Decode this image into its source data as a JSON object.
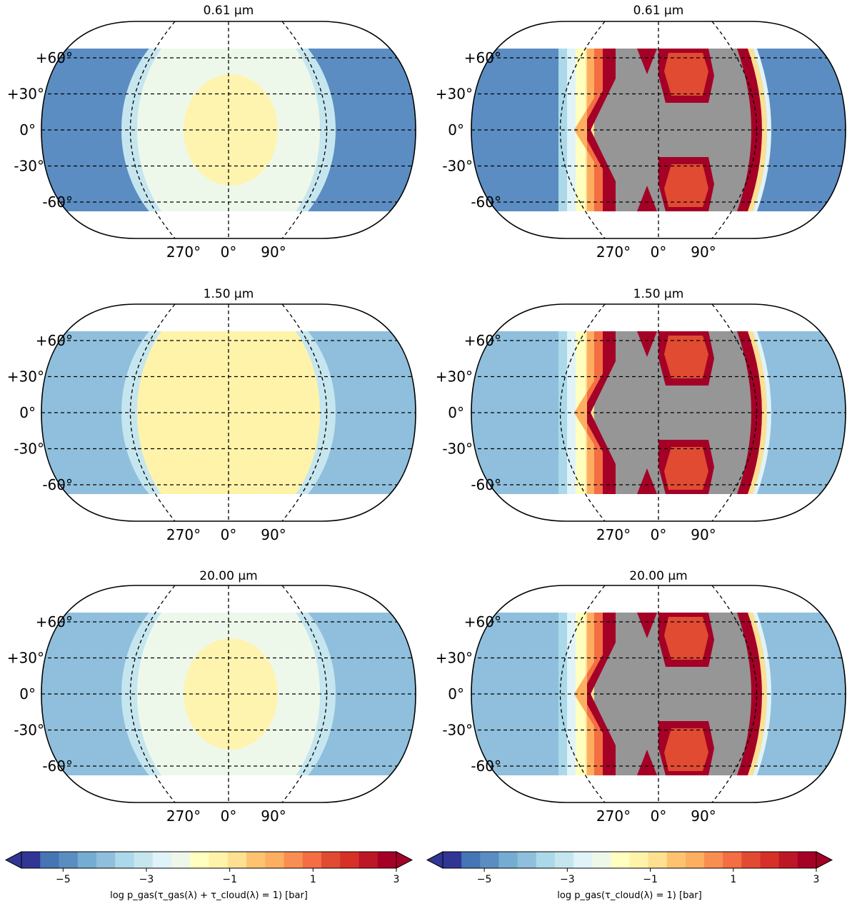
{
  "chart_data": {
    "type": "heatmap",
    "projection": "Robinson (elliptical outline, latitude band -60° to +60°)",
    "panels": [
      {
        "row": 0,
        "column": "left",
        "title": "0.61 μm",
        "field": "gas_plus_cloud",
        "nightside_value": -5.0,
        "limb_value": -3.0,
        "dayside_value": -2.0,
        "substellar_value": -1.5
      },
      {
        "row": 0,
        "column": "right",
        "title": "0.61 μm",
        "field": "cloud_only",
        "nightside_value": -5.0,
        "limb_value": -2.0,
        "terminator_value": 3.0,
        "cloud_patch_value": 1.2,
        "missing_color": "#969696"
      },
      {
        "row": 1,
        "column": "left",
        "title": "1.50 μm",
        "field": "gas_plus_cloud",
        "nightside_value": -4.0,
        "limb_value": -3.0,
        "dayside_value": -1.3,
        "substellar_value": -1.3
      },
      {
        "row": 1,
        "column": "right",
        "title": "1.50 μm",
        "field": "cloud_only",
        "nightside_value": -4.0,
        "limb_value": -2.0,
        "terminator_value": 3.0,
        "cloud_patch_value": 1.2,
        "missing_color": "#969696"
      },
      {
        "row": 2,
        "column": "left",
        "title": "20.00 μm",
        "field": "gas_plus_cloud",
        "nightside_value": -4.0,
        "limb_value": -3.0,
        "dayside_value": -2.0,
        "substellar_value": -1.5
      },
      {
        "row": 2,
        "column": "right",
        "title": "20.00 μm",
        "field": "cloud_only",
        "nightside_value": -4.0,
        "limb_value": -2.0,
        "terminator_value": 3.0,
        "cloud_patch_value": 1.2,
        "missing_color": "#969696"
      }
    ],
    "latitude_ticks": [
      "+60°",
      "+30°",
      "0°",
      "-30°",
      "-60°"
    ],
    "latitude_values": [
      60,
      30,
      0,
      -30,
      -60
    ],
    "longitude_ticks": [
      "270°",
      "0°",
      "90°"
    ],
    "longitude_values": [
      270,
      0,
      90
    ],
    "grid": true,
    "colorbars": [
      {
        "label": "log p_gas(τ_gas(λ) + τ_cloud(λ) = 1) [bar]",
        "range": [
          -6,
          3
        ],
        "ticks": [
          "−5",
          "−3",
          "−1",
          "1",
          "3"
        ],
        "tick_values": [
          -5,
          -3,
          -1,
          1,
          3
        ]
      },
      {
        "label": "log p_gas(τ_cloud(λ) = 1) [bar]",
        "range": [
          -6,
          3
        ],
        "ticks": [
          "−5",
          "−3",
          "−1",
          "1",
          "3"
        ],
        "tick_values": [
          -5,
          -3,
          -1,
          1,
          3
        ]
      }
    ],
    "colormap": "RdYlBu_r",
    "colormap_colors": [
      "#313695",
      "#4575b4",
      "#5b8dc2",
      "#74add1",
      "#8fbfdc",
      "#abd9e9",
      "#c6e6ef",
      "#e0f3f8",
      "#eef8ea",
      "#ffffbf",
      "#fff3aa",
      "#fee090",
      "#fdc371",
      "#fdae61",
      "#f98e52",
      "#f46d43",
      "#e04b31",
      "#d73027",
      "#bd1726",
      "#a50026"
    ],
    "colormap_under": "#313695",
    "colormap_over": "#a50026"
  }
}
